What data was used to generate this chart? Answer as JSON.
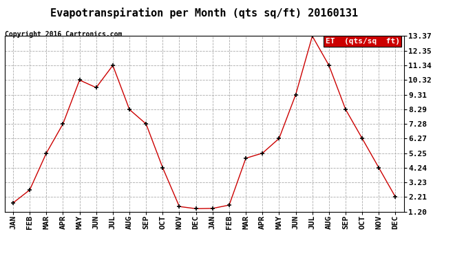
{
  "title": "Evapotranspiration per Month (qts sq/ft) 20160131",
  "copyright": "Copyright 2016 Cartronics.com",
  "legend_label": "ET  (qts/sq  ft)",
  "x_labels": [
    "JAN",
    "FEB",
    "MAR",
    "APR",
    "MAY",
    "JUN",
    "JUL",
    "AUG",
    "SEP",
    "OCT",
    "NOV",
    "DEC",
    "JAN",
    "FEB",
    "MAR",
    "APR",
    "MAY",
    "JUN",
    "JUL",
    "AUG",
    "SEP",
    "OCT",
    "NOV",
    "DEC"
  ],
  "y_values": [
    1.8,
    2.7,
    5.25,
    7.28,
    10.32,
    9.8,
    11.34,
    8.28,
    7.28,
    4.24,
    1.55,
    1.4,
    1.42,
    1.65,
    4.9,
    5.25,
    6.27,
    9.31,
    13.37,
    11.34,
    8.29,
    6.27,
    4.24,
    2.21
  ],
  "y_ticks": [
    1.2,
    2.21,
    3.23,
    4.24,
    5.25,
    6.27,
    7.28,
    8.29,
    9.31,
    10.32,
    11.34,
    12.35,
    13.37
  ],
  "y_min": 1.2,
  "y_max": 13.37,
  "line_color": "#cc0000",
  "marker_color": "#000000",
  "background_color": "#ffffff",
  "grid_color": "#aaaaaa",
  "title_fontsize": 11,
  "copyright_fontsize": 7,
  "tick_fontsize": 8,
  "legend_bg": "#cc0000",
  "legend_text_color": "#ffffff"
}
